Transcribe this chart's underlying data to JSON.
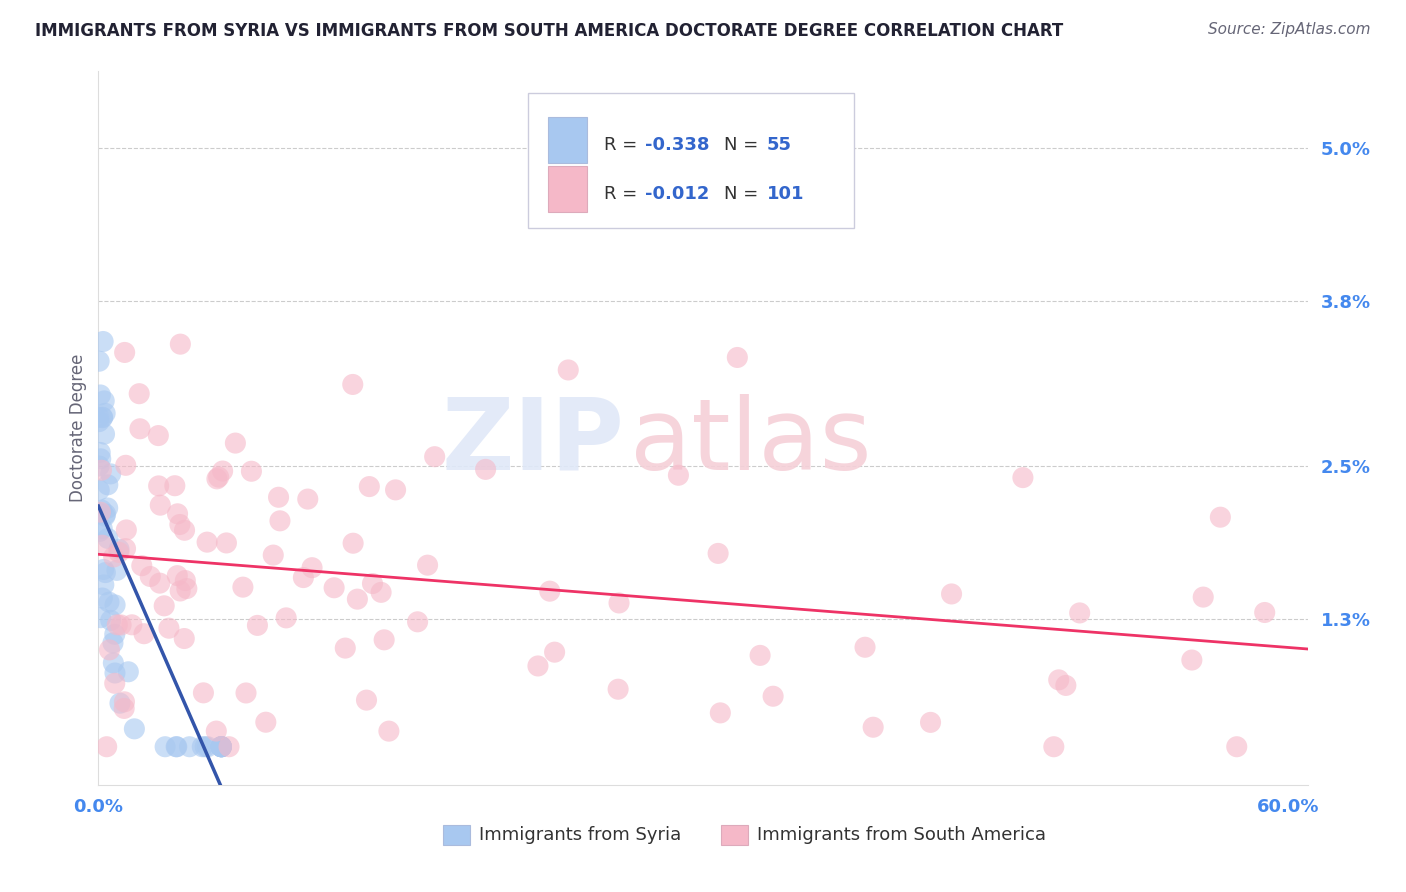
{
  "title": "IMMIGRANTS FROM SYRIA VS IMMIGRANTS FROM SOUTH AMERICA DOCTORATE DEGREE CORRELATION CHART",
  "source": "Source: ZipAtlas.com",
  "ylabel": "Doctorate Degree",
  "xlabel_blue": "Immigrants from Syria",
  "xlabel_pink": "Immigrants from South America",
  "xlim": [
    0.0,
    0.61
  ],
  "ylim": [
    0.0,
    0.056
  ],
  "ytick_vals": [
    0.013,
    0.025,
    0.038,
    0.05
  ],
  "ytick_labels": [
    "1.3%",
    "2.5%",
    "3.8%",
    "5.0%"
  ],
  "xtick_vals": [
    0.0,
    0.6
  ],
  "xtick_labels": [
    "0.0%",
    "60.0%"
  ],
  "color_blue": "#A8C8F0",
  "color_pink": "#F5B8C8",
  "color_trend_blue": "#3355AA",
  "color_trend_pink": "#EE3366",
  "color_title": "#222233",
  "color_source": "#666677",
  "color_axis_ticks": "#4488EE",
  "color_ylabel": "#666677",
  "color_r_val": "#3366CC",
  "color_n_val": "#3366CC",
  "color_rn_label": "#333333",
  "color_legend_border": "#CCCCDD",
  "watermark_color": "#E0E8F8",
  "watermark_color2": "#F5D0D8",
  "background": "#FFFFFF",
  "grid_color": "#CCCCCC",
  "seed": 77
}
